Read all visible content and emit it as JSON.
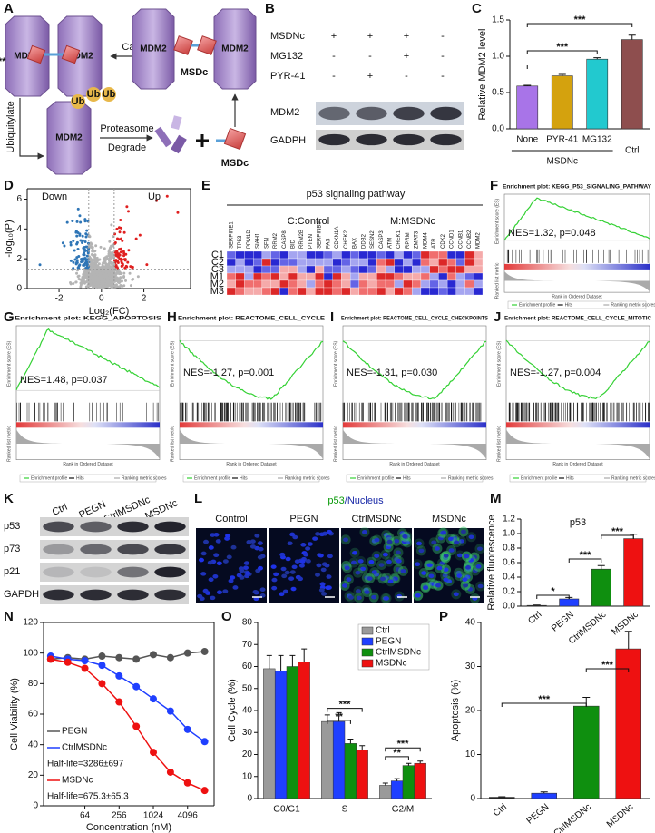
{
  "panel_labels": [
    "A",
    "B",
    "C",
    "D",
    "E",
    "F",
    "G",
    "H",
    "I",
    "J",
    "K",
    "L",
    "M",
    "N",
    "O",
    "P"
  ],
  "scheme": {
    "mdm2": "MDM2",
    "msdc": "MSDc",
    "capture": "Capture",
    "ubiquitylate": "Ubiquitylate",
    "ub": "Ub",
    "proteasome": "Proteasome",
    "degrade": "Degrade"
  },
  "western_mdm2": {
    "treatments": [
      {
        "name": "MSDNc",
        "signs": [
          "+",
          "+",
          "+",
          "-"
        ]
      },
      {
        "name": "MG132",
        "signs": [
          "-",
          "-",
          "+",
          "-"
        ]
      },
      {
        "name": "PYR-41",
        "signs": [
          "-",
          "+",
          "-",
          "-"
        ]
      }
    ],
    "blots": [
      "MDM2",
      "GADPH"
    ]
  },
  "heatmap": {
    "title": "p53 signaling pathway",
    "legend": [
      "C:Control",
      "M:MSDNc"
    ],
    "genes": [
      "SERPINE1",
      "TP53",
      "PPM1D",
      "SIAH1",
      "SFN",
      "RRM2",
      "CASP8",
      "BID",
      "RRM2B",
      "PTEN",
      "SERPINB5",
      "FAS",
      "CDKN1A",
      "CHEK2",
      "BAX",
      "DDB2",
      "SESN2",
      "CASP3",
      "ATM",
      "CHEK1",
      "RPRM",
      "ZMAT3",
      "MDM4",
      "ATR",
      "CDK2",
      "CCND1",
      "CCNB1",
      "CCNB2",
      "MDM2"
    ],
    "samples": [
      "C1",
      "C2",
      "C3",
      "M1",
      "M2",
      "M3"
    ]
  },
  "gsea": {
    "axis_es": "Enrichment score (ES)",
    "axis_rank": "Rank in Ordered Dataset",
    "axis_metric": "Ranked list metric",
    "legend": [
      "Enrichment profile",
      "Hits",
      "Ranking metric scores"
    ],
    "plots": [
      {
        "title": "Enrichment plot: KEGG_P53_SIGNALING_PATHWAY",
        "stat": "NES=1.32, p=0.048"
      },
      {
        "title": "Enrichment plot: KEGG_APOPTOSIS",
        "stat": "NES=1.48, p=0.037"
      },
      {
        "title": "Enrichment plot: REACTOME_CELL_CYCLE",
        "stat": "NES=-1.27, p=0.001"
      },
      {
        "title": "Enrichment plot: REACTOME_CELL_CYCLE_CHECKPOINTS",
        "stat": "NES=-1.31, p=0.030"
      },
      {
        "title": "Enrichment plot: REACTOME_CELL_CYCLE_MITOTIC",
        "stat": "NES=-1.27, p=0.004"
      }
    ]
  },
  "western_p53": {
    "lanes": [
      "Ctrl",
      "PEGN",
      "CtrlMSDNc",
      "MSDNc"
    ],
    "blots": [
      "p53",
      "p73",
      "p21",
      "GAPDH"
    ]
  },
  "imaging": {
    "title": [
      "p53",
      "/Nucleus"
    ],
    "columns": [
      "Control",
      "PEGN",
      "CtrlMSDNc",
      "MSDNc"
    ]
  },
  "chart_data": [
    {
      "type": "bar",
      "ylabel": "Relative MDM2 level",
      "categories": [
        "None",
        "PYR-41",
        "MG132",
        "Ctrl"
      ],
      "values": [
        0.59,
        0.73,
        0.96,
        1.23
      ],
      "errors": [
        0.01,
        0.02,
        0.02,
        0.06
      ],
      "colors": [
        "#a874e8",
        "#d4a20e",
        "#22c9cf",
        "#8e4e4e"
      ],
      "ylim": [
        0,
        1.5
      ],
      "yticks": [
        {
          "value": 0,
          "label": "0.0"
        },
        {
          "value": 0.5,
          "label": "0.5"
        },
        {
          "value": 1,
          "label": "1.0"
        },
        {
          "value": 1.5,
          "label": "1.5"
        }
      ],
      "group_label": "MSDNc",
      "annotations": [
        "***",
        "***",
        "***"
      ]
    },
    {
      "type": "scatter",
      "xlabel": "Log₂(FC)",
      "ylabel": "-log₁₀(P)",
      "xlim": [
        -3.5,
        4.2
      ],
      "ylim": [
        0,
        6.7
      ],
      "xticks": [
        -2,
        0,
        2
      ],
      "yticks": [
        0,
        2,
        4,
        6
      ],
      "labels": [
        "Down",
        "Up"
      ],
      "colors": [
        "#2e75b6",
        "#e02020",
        "#b4b4b4"
      ],
      "reference_x": [
        -0.6,
        0.6
      ],
      "reference_y": [
        1.3
      ]
    },
    {
      "type": "bar",
      "title": "p53",
      "ylabel": "Relative fluorescence",
      "categories": [
        "Ctrl",
        "PEGN",
        "CtrlMSDNc",
        "MSDNc"
      ],
      "values": [
        0.01,
        0.1,
        0.51,
        0.93
      ],
      "errors": [
        0.005,
        0.02,
        0.05,
        0.06
      ],
      "colors": [
        "#222222",
        "#1f3fff",
        "#0f8f0f",
        "#ee1111"
      ],
      "ylim": [
        0,
        1.2
      ],
      "yticks": [
        {
          "value": 0,
          "label": "0.0"
        },
        {
          "value": 0.2,
          "label": "0.2"
        },
        {
          "value": 0.4,
          "label": "0.4"
        },
        {
          "value": 0.6,
          "label": "0.6"
        },
        {
          "value": 0.8,
          "label": "0.8"
        },
        {
          "value": 1,
          "label": "1.0"
        },
        {
          "value": 1.2,
          "label": "1.2"
        }
      ],
      "annotations": [
        "*",
        "***",
        "***"
      ]
    },
    {
      "type": "line",
      "xlabel": "Concentration (nM)",
      "ylabel": "Cell Viability (%)",
      "log_x": true,
      "x": [
        16,
        32,
        64,
        128,
        256,
        512,
        1024,
        2048,
        4096,
        8192
      ],
      "xlim": [
        12,
        12000
      ],
      "xticks": [
        64,
        256,
        1024,
        4096
      ],
      "ylim": [
        0,
        120
      ],
      "yticks": [
        0,
        20,
        40,
        60,
        80,
        100,
        120
      ],
      "series": [
        {
          "name": "PEGN",
          "color": "#555555",
          "values": [
            96,
            97,
            96,
            98,
            97,
            96,
            99,
            97,
            100,
            101
          ]
        },
        {
          "name": "CtrlMSDNc",
          "color": "#1f3fff",
          "values": [
            98,
            96,
            95,
            92,
            85,
            78,
            70,
            62,
            50,
            42
          ]
        },
        {
          "name": "MSDNc",
          "color": "#ee1111",
          "values": [
            96,
            94,
            90,
            80,
            68,
            52,
            35,
            22,
            15,
            10
          ]
        }
      ],
      "notes": [
        "Half-life=3286±697",
        "Half-life=675.3±65.3"
      ]
    },
    {
      "type": "grouped_bar",
      "ylabel": "Cell Cycle (%)",
      "categories": [
        "G0/G1",
        "S",
        "G2/M"
      ],
      "ylim": [
        0,
        80
      ],
      "yticks": [
        0,
        10,
        20,
        30,
        40,
        50,
        60,
        70,
        80
      ],
      "series": [
        {
          "name": "Ctrl",
          "color": "#9a9a9a",
          "values": [
            59,
            35,
            6
          ],
          "errors": [
            6,
            3,
            1
          ]
        },
        {
          "name": "PEGN",
          "color": "#1f3fff",
          "values": [
            58,
            35,
            8
          ],
          "errors": [
            7,
            4,
            1
          ]
        },
        {
          "name": "CtrlMSDNc",
          "color": "#0f8f0f",
          "values": [
            60,
            25,
            15
          ],
          "errors": [
            5,
            2,
            1
          ]
        },
        {
          "name": "MSDNc",
          "color": "#ee1111",
          "values": [
            62,
            22,
            16
          ],
          "errors": [
            6,
            2,
            1
          ]
        }
      ],
      "annotations": [
        "**",
        "***",
        "**",
        "***"
      ]
    },
    {
      "type": "bar",
      "ylabel": "Apoptosis (%)",
      "categories": [
        "Ctrl",
        "PEGN",
        "CtrlMSDNc",
        "MSDNc"
      ],
      "values": [
        0.3,
        1.2,
        21,
        34
      ],
      "errors": [
        0.1,
        0.3,
        2,
        4
      ],
      "colors": [
        "#222222",
        "#1f3fff",
        "#0f8f0f",
        "#ee1111"
      ],
      "ylim": [
        0,
        40
      ],
      "yticks": [
        0,
        10,
        20,
        30,
        40
      ],
      "annotations": [
        "***",
        "***"
      ]
    }
  ]
}
